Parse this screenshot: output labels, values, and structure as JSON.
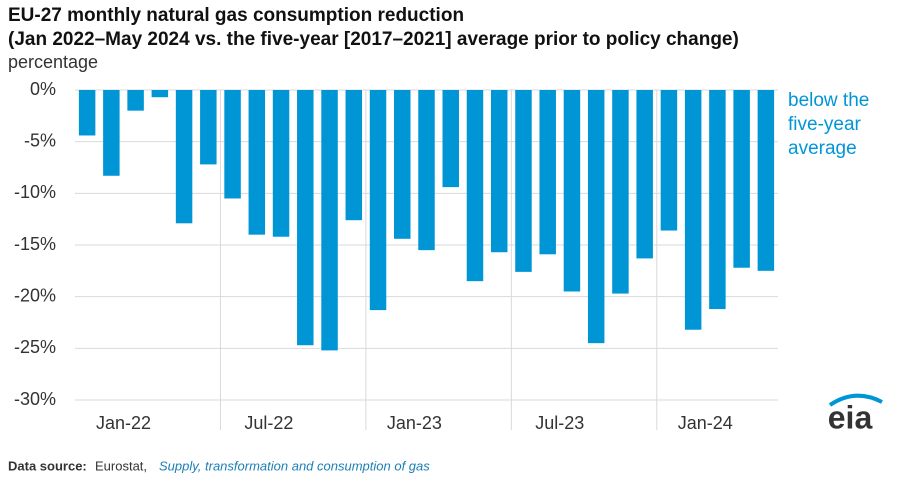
{
  "chart_data": {
    "type": "bar",
    "title": "EU-27 monthly natural gas consumption reduction",
    "subtitle": "(Jan 2022–May 2024 vs. the five-year [2017–2021] average prior to policy change)",
    "y_label": "percentage",
    "categories": [
      "Jan-22",
      null,
      null,
      null,
      null,
      null,
      "Jul-22",
      null,
      null,
      null,
      null,
      null,
      "Jan-23",
      null,
      null,
      null,
      null,
      null,
      "Jul-23",
      null,
      null,
      null,
      null,
      null,
      "Jan-24",
      null,
      null,
      null,
      null
    ],
    "values": [
      -4.4,
      -8.3,
      -2.0,
      -0.7,
      -12.9,
      -7.2,
      -10.5,
      -14.0,
      -14.2,
      -24.7,
      -25.2,
      -12.6,
      -21.3,
      -14.4,
      -15.5,
      -9.4,
      -18.5,
      -15.7,
      -17.6,
      -15.9,
      -19.5,
      -24.5,
      -19.7,
      -16.3,
      -13.6,
      -23.2,
      -21.2,
      -17.2,
      -17.5
    ],
    "color": "#0096d6",
    "ylim": [
      -30,
      0
    ],
    "yticks": [
      {
        "value": 0,
        "label": "0%"
      },
      {
        "value": -5,
        "label": "-5%"
      },
      {
        "value": -10,
        "label": "-10%"
      },
      {
        "value": -15,
        "label": "-15%"
      },
      {
        "value": -20,
        "label": "-20%"
      },
      {
        "value": -25,
        "label": "-25%"
      },
      {
        "value": -30,
        "label": "-30%"
      }
    ],
    "grid": true,
    "annotation": [
      "below the",
      "five-year",
      "average"
    ],
    "source_label": "Data source:",
    "source": "Eurostat,",
    "source_link": "Supply, transformation and consumption of gas",
    "logo": "eia"
  }
}
